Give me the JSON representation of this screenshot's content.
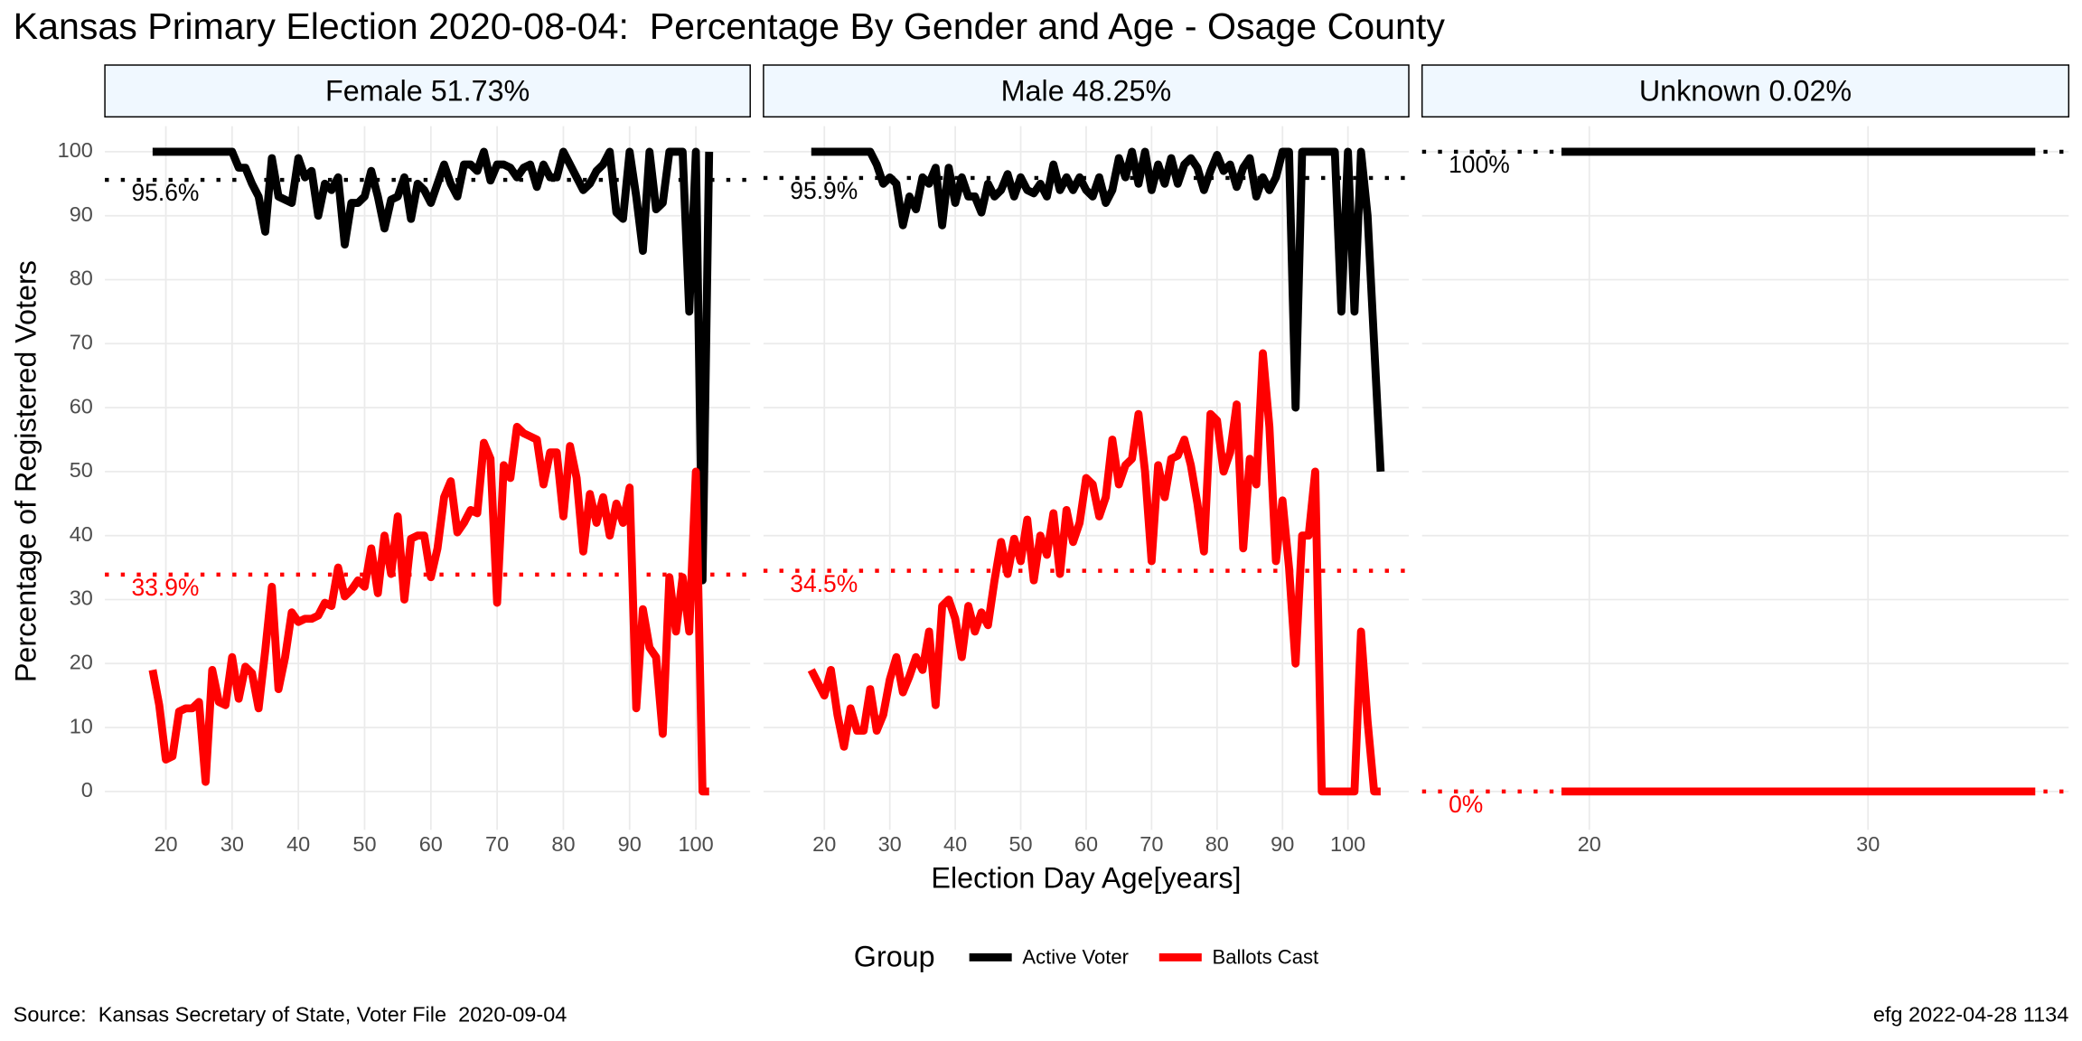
{
  "chart_data": {
    "type": "line",
    "title": "Kansas Primary Election 2020-08-04:  Percentage By Gender and Age - Osage County",
    "x_label": "Election Day Age[years]",
    "y_label": "Percentage of Registered Voters",
    "legend_title": "Group",
    "source": "Source:  Kansas Secretary of State, Voter File  2020-09-04",
    "stamp": "efg 2022-04-28 1134",
    "ylim": [
      -6,
      104
    ],
    "yticks": [
      0,
      10,
      20,
      30,
      40,
      50,
      60,
      70,
      80,
      90,
      100
    ],
    "grid": true,
    "facets": [
      {
        "title": "Female 51.73%",
        "xlim": [
          10.8,
          108.2
        ],
        "xticks": [
          20,
          30,
          40,
          50,
          60,
          70,
          80,
          90,
          100
        ],
        "x": [
          18,
          19,
          20,
          21,
          22,
          23,
          24,
          25,
          26,
          27,
          28,
          29,
          30,
          31,
          32,
          33,
          34,
          35,
          36,
          37,
          38,
          39,
          40,
          41,
          42,
          43,
          44,
          45,
          46,
          47,
          48,
          49,
          50,
          51,
          52,
          53,
          54,
          55,
          56,
          57,
          58,
          59,
          60,
          61,
          62,
          63,
          64,
          65,
          66,
          67,
          68,
          69,
          70,
          71,
          72,
          73,
          74,
          75,
          76,
          77,
          78,
          79,
          80,
          81,
          82,
          83,
          84,
          85,
          86,
          87,
          88,
          89,
          90,
          91,
          92,
          93,
          94,
          95,
          96,
          97,
          98,
          99,
          100,
          101,
          102
        ],
        "series": [
          {
            "name": "Active Voter",
            "color": "#000000",
            "mean": 95.6,
            "mean_label": "95.6%",
            "values": [
              100,
              100,
              100,
              100,
              100,
              100,
              100,
              100,
              100,
              100,
              100,
              100,
              100,
              97.5,
              97.5,
              95,
              93,
              87.5,
              99,
              93,
              92.5,
              92,
              99,
              96,
              97,
              90,
              95,
              94,
              96,
              85.5,
              92,
              92,
              93,
              97,
              93,
              88,
              92.5,
              93,
              96,
              89.5,
              95,
              94,
              92,
              95,
              98,
              95,
              93,
              98,
              98,
              97,
              100,
              95.5,
              98,
              98,
              97.5,
              96,
              97.5,
              98,
              94.5,
              98,
              96,
              96,
              100,
              98,
              96,
              94,
              95,
              97,
              98,
              100,
              90.5,
              89.5,
              100,
              93,
              84.5,
              100,
              91,
              92,
              100,
              100,
              100,
              75,
              100,
              33,
              100
            ]
          },
          {
            "name": "Ballots Cast",
            "color": "#ff0000",
            "mean": 33.9,
            "mean_label": "33.9%",
            "values": [
              19,
              13.5,
              5,
              5.5,
              12.5,
              13,
              13,
              14,
              1.5,
              19,
              14,
              13.5,
              21,
              14.5,
              19.5,
              18.5,
              13,
              22,
              32,
              16,
              21,
              28,
              26.5,
              27,
              27,
              27.5,
              29.5,
              29,
              35,
              30.5,
              31.5,
              33,
              32,
              38,
              31,
              40,
              34,
              43,
              30,
              39.5,
              40,
              40,
              33.5,
              38,
              46,
              48.5,
              40.5,
              42,
              44,
              43.5,
              54.5,
              52,
              29.5,
              51,
              49,
              57,
              56,
              55.5,
              55,
              48,
              53,
              53,
              43,
              54,
              49,
              37.5,
              46.5,
              42,
              46,
              40,
              45,
              42,
              47.5,
              13,
              28.5,
              22.5,
              21,
              9,
              33.5,
              25,
              33.5,
              25,
              50,
              0,
              0
            ]
          }
        ]
      },
      {
        "title": "Male 48.25%",
        "xlim": [
          10.7,
          109.3
        ],
        "xticks": [
          20,
          30,
          40,
          50,
          60,
          70,
          80,
          90,
          100
        ],
        "x": [
          18,
          19,
          20,
          21,
          22,
          23,
          24,
          25,
          26,
          27,
          28,
          29,
          30,
          31,
          32,
          33,
          34,
          35,
          36,
          37,
          38,
          39,
          40,
          41,
          42,
          43,
          44,
          45,
          46,
          47,
          48,
          49,
          50,
          51,
          52,
          53,
          54,
          55,
          56,
          57,
          58,
          59,
          60,
          61,
          62,
          63,
          64,
          65,
          66,
          67,
          68,
          69,
          70,
          71,
          72,
          73,
          74,
          75,
          76,
          77,
          78,
          79,
          80,
          81,
          82,
          83,
          84,
          85,
          86,
          87,
          88,
          89,
          90,
          91,
          92,
          93,
          94,
          95,
          96,
          97,
          98,
          99,
          100,
          101,
          102,
          103,
          104,
          105
        ],
        "series": [
          {
            "name": "Active Voter",
            "color": "#000000",
            "mean": 95.9,
            "mean_label": "95.9%",
            "values": [
              100,
              100,
              100,
              100,
              100,
              100,
              100,
              100,
              100,
              100,
              98,
              95,
              96,
              95,
              88.5,
              93,
              91,
              96,
              95,
              97.5,
              88.5,
              97.5,
              92,
              96,
              93,
              93,
              90.5,
              95,
              93,
              94,
              96.5,
              93,
              96,
              94,
              93.5,
              95,
              93,
              98,
              94,
              96,
              94,
              96,
              94,
              93,
              96,
              92,
              94,
              99,
              96,
              100,
              95,
              100,
              94,
              98,
              95,
              99,
              95,
              98,
              99,
              97.5,
              94,
              97,
              99.5,
              97,
              98,
              94.5,
              97.5,
              99,
              93,
              96,
              94,
              96,
              100,
              100,
              60,
              100,
              100,
              100,
              100,
              100,
              100,
              75,
              100,
              75,
              100,
              90,
              70,
              50
            ]
          },
          {
            "name": "Ballots Cast",
            "color": "#ff0000",
            "mean": 34.5,
            "mean_label": "34.5%",
            "values": [
              19,
              17,
              15,
              19,
              12,
              7,
              13,
              9.5,
              9.5,
              16,
              9.5,
              12,
              17.5,
              21,
              15.5,
              18,
              21,
              19,
              25,
              13.5,
              29,
              30,
              27,
              21,
              29,
              25,
              28,
              26,
              33,
              39,
              34,
              39.5,
              36,
              42.5,
              33,
              40,
              37,
              43.5,
              34,
              44,
              39,
              42,
              49,
              48,
              43,
              46,
              55,
              48,
              51,
              52,
              59,
              50,
              36,
              51,
              46,
              52,
              52.5,
              55,
              51,
              45,
              37.5,
              59,
              58,
              50,
              53,
              60.5,
              38,
              52,
              48,
              68.5,
              57,
              36,
              45.5,
              35,
              20,
              40,
              40,
              50,
              0,
              0,
              0,
              0,
              0,
              0,
              25,
              11,
              0,
              0
            ]
          }
        ]
      },
      {
        "title": "Unknown 0.02%",
        "xlim": [
          14,
          37.2
        ],
        "xticks": [
          20,
          30
        ],
        "x": [
          19,
          20,
          21,
          22,
          23,
          24,
          25,
          26,
          27,
          28,
          29,
          30,
          31,
          32,
          33,
          34,
          35,
          36
        ],
        "series": [
          {
            "name": "Active Voter",
            "color": "#000000",
            "mean": 100,
            "mean_label": "100%",
            "values": [
              100,
              100,
              100,
              100,
              100,
              100,
              100,
              100,
              100,
              100,
              100,
              100,
              100,
              100,
              100,
              100,
              100,
              100
            ]
          },
          {
            "name": "Ballots Cast",
            "color": "#ff0000",
            "mean": 0,
            "mean_label": "0%",
            "values": [
              0,
              0,
              0,
              0,
              0,
              0,
              0,
              0,
              0,
              0,
              0,
              0,
              0,
              0,
              0,
              0,
              0,
              0
            ]
          }
        ]
      }
    ]
  }
}
